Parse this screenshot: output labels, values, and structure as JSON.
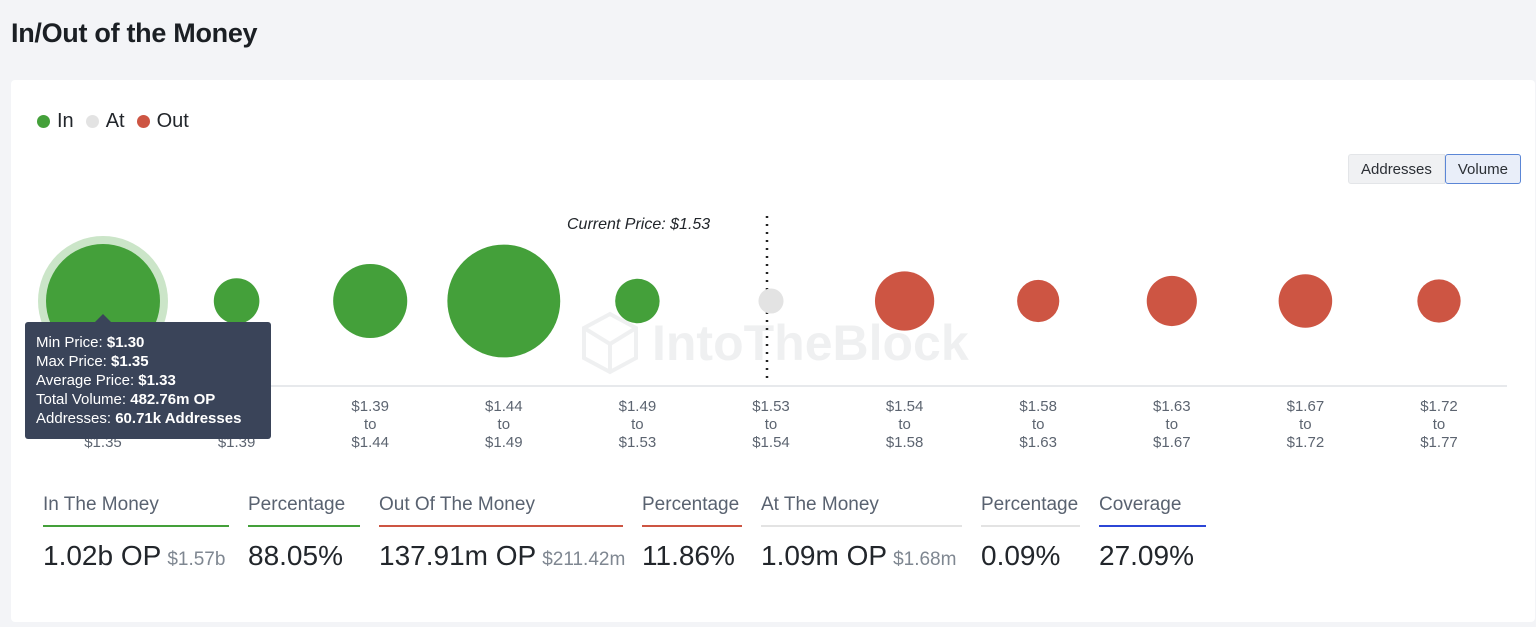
{
  "page": {
    "title": "In/Out of the Money"
  },
  "legend": [
    {
      "label": "In",
      "color": "#44a03a"
    },
    {
      "label": "At",
      "color": "#e3e3e3"
    },
    {
      "label": "Out",
      "color": "#cd5543"
    }
  ],
  "toggle": {
    "addresses_label": "Addresses",
    "volume_label": "Volume",
    "selected": "Volume"
  },
  "current_price_label": "Current Price: $1.53",
  "watermark": "IntoTheBlock",
  "tooltip": {
    "min_label": "Min Price:",
    "min_value": "$1.30",
    "max_label": "Max Price:",
    "max_value": "$1.35",
    "avg_label": "Average Price:",
    "avg_value": "$1.33",
    "vol_label": "Total Volume:",
    "vol_value": "482.76m OP",
    "addr_label": "Addresses:",
    "addr_value": "60.71k Addresses"
  },
  "chart_data": {
    "type": "scatter",
    "encoding": "bubble size = volume",
    "current_price": "$1.53",
    "categories": [
      {
        "from": "$1.30",
        "to": "$1.35",
        "status": "In",
        "size": 1.0,
        "highlighted": true
      },
      {
        "from": "$1.35",
        "to": "$1.39",
        "status": "In",
        "size": 0.4
      },
      {
        "from": "$1.39",
        "to": "$1.44",
        "status": "In",
        "size": 0.65
      },
      {
        "from": "$1.44",
        "to": "$1.49",
        "status": "In",
        "size": 0.99
      },
      {
        "from": "$1.49",
        "to": "$1.53",
        "status": "In",
        "size": 0.39
      },
      {
        "from": "$1.53",
        "to": "$1.54",
        "status": "At",
        "size": 0.22
      },
      {
        "from": "$1.54",
        "to": "$1.58",
        "status": "Out",
        "size": 0.52
      },
      {
        "from": "$1.58",
        "to": "$1.63",
        "status": "Out",
        "size": 0.37
      },
      {
        "from": "$1.63",
        "to": "$1.67",
        "status": "Out",
        "size": 0.44
      },
      {
        "from": "$1.67",
        "to": "$1.72",
        "status": "Out",
        "size": 0.47
      },
      {
        "from": "$1.72",
        "to": "$1.77",
        "status": "Out",
        "size": 0.38
      }
    ],
    "to_word": "to"
  },
  "stats": [
    {
      "label": "In The Money",
      "value": "1.02b OP",
      "usd": "$1.57b",
      "rule_color": "#44a03a"
    },
    {
      "label": "Percentage",
      "value": "88.05%",
      "usd": "",
      "rule_color": "#44a03a"
    },
    {
      "label": "Out Of The Money",
      "value": "137.91m OP",
      "usd": "$211.42m",
      "rule_color": "#cd5543"
    },
    {
      "label": "Percentage",
      "value": "11.86%",
      "usd": "",
      "rule_color": "#cd5543"
    },
    {
      "label": "At The Money",
      "value": "1.09m OP",
      "usd": "$1.68m",
      "rule_color": "#e3e3e3"
    },
    {
      "label": "Percentage",
      "value": "0.09%",
      "usd": "",
      "rule_color": "#e3e3e3"
    },
    {
      "label": "Coverage",
      "value": "27.09%",
      "usd": "",
      "rule_color": "#2c46d6"
    }
  ]
}
